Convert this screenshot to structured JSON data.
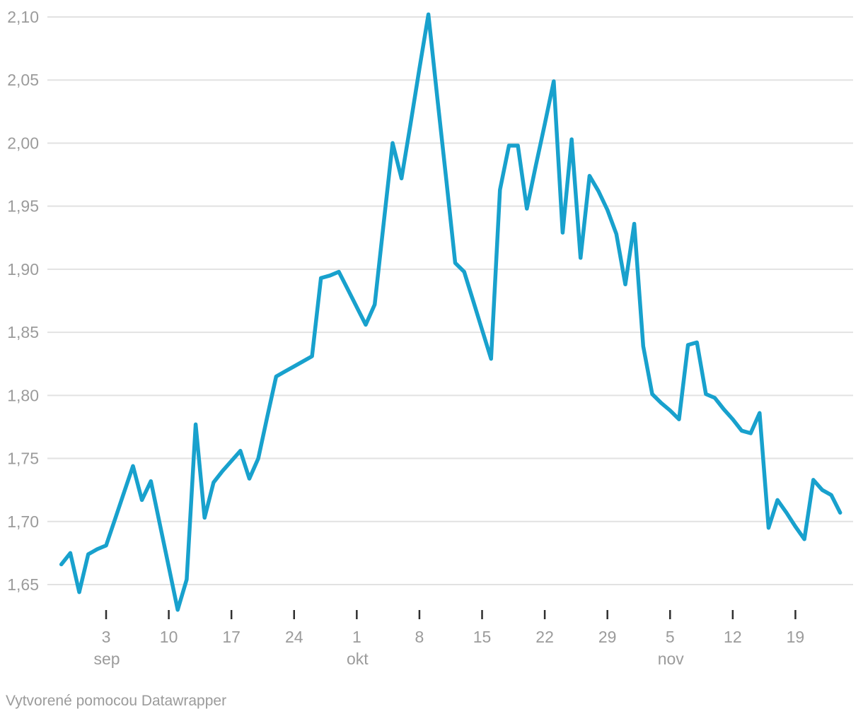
{
  "colors": {
    "line": "#18a1cd",
    "grid": "#e2e2e2",
    "axis_text": "#9b9b9b",
    "tick_mark": "#2f2f2f",
    "background": "#ffffff"
  },
  "footer": {
    "credit": "Vytvorené pomocou Datawrapper"
  },
  "chart_data": {
    "type": "line",
    "grid": true,
    "legend": "none",
    "y_axis": {
      "tick_labels": [
        "2,10",
        "2,05",
        "2,00",
        "1,95",
        "1,90",
        "1,85",
        "1,80",
        "1,75",
        "1,70",
        "1,65"
      ],
      "tick_values": [
        2.1,
        2.05,
        2.0,
        1.95,
        1.9,
        1.85,
        1.8,
        1.75,
        1.7,
        1.65
      ],
      "range": [
        1.65,
        2.1
      ],
      "decimal_separator": ","
    },
    "x_axis": {
      "ticks": [
        {
          "label": "3",
          "month": "sep",
          "index": 5
        },
        {
          "label": "10",
          "month": "",
          "index": 12
        },
        {
          "label": "17",
          "month": "",
          "index": 19
        },
        {
          "label": "24",
          "month": "",
          "index": 26
        },
        {
          "label": "1",
          "month": "okt",
          "index": 33
        },
        {
          "label": "8",
          "month": "",
          "index": 40
        },
        {
          "label": "15",
          "month": "",
          "index": 47
        },
        {
          "label": "22",
          "month": "",
          "index": 54
        },
        {
          "label": "29",
          "month": "",
          "index": 61
        },
        {
          "label": "5",
          "month": "nov",
          "index": 68
        },
        {
          "label": "12",
          "month": "",
          "index": 75
        },
        {
          "label": "19",
          "month": "",
          "index": 82
        }
      ]
    },
    "dates": [
      "29. aug",
      "30. aug",
      "31. aug",
      "1. sep",
      "2. sep",
      "3. sep",
      "4. sep",
      "5. sep",
      "6. sep",
      "7. sep",
      "8. sep",
      "9. sep",
      "10. sep",
      "11. sep",
      "12. sep",
      "13. sep",
      "14. sep",
      "15. sep",
      "16. sep",
      "17. sep",
      "18. sep",
      "19. sep",
      "20. sep",
      "21. sep",
      "22. sep",
      "23. sep",
      "24. sep",
      "25. sep",
      "26. sep",
      "27. sep",
      "28. sep",
      "29. sep",
      "30. sep",
      "1. okt",
      "2. okt",
      "3. okt",
      "4. okt",
      "5. okt",
      "6. okt",
      "7. okt",
      "8. okt",
      "9. okt",
      "10. okt",
      "11. okt",
      "12. okt",
      "13. okt",
      "14. okt",
      "15. okt",
      "16. okt",
      "17. okt",
      "18. okt",
      "19. okt",
      "20. okt",
      "21. okt",
      "22. okt",
      "23. okt",
      "24. okt",
      "25. okt",
      "26. okt",
      "27. okt",
      "28. okt",
      "29. okt",
      "30. okt",
      "31. okt",
      "1. nov",
      "2. nov",
      "3. nov",
      "4. nov",
      "5. nov",
      "6. nov",
      "7. nov",
      "8. nov",
      "9. nov",
      "10. nov",
      "11. nov",
      "12. nov",
      "13. nov",
      "14. nov",
      "15. nov",
      "16. nov",
      "17. nov",
      "18. nov",
      "19. nov",
      "20. nov",
      "21. nov",
      "22. nov",
      "23. nov",
      "24. nov"
    ],
    "values": [
      1.666,
      1.675,
      1.644,
      1.674,
      1.678,
      1.681,
      1.702,
      1.723,
      1.744,
      1.717,
      1.732,
      1.698,
      1.664,
      1.63,
      1.654,
      1.777,
      1.703,
      1.731,
      1.74,
      1.748,
      1.756,
      1.734,
      1.75,
      1.783,
      1.815,
      1.819,
      1.823,
      1.827,
      1.831,
      1.893,
      1.895,
      1.898,
      1.884,
      1.87,
      1.856,
      1.872,
      1.936,
      2.0,
      1.972,
      2.015,
      2.059,
      2.102,
      2.036,
      1.971,
      1.905,
      1.898,
      1.875,
      1.852,
      1.829,
      1.963,
      1.998,
      1.998,
      1.948,
      1.982,
      2.015,
      2.049,
      1.929,
      2.003,
      1.909,
      1.974,
      1.962,
      1.947,
      1.928,
      1.888,
      1.936,
      1.839,
      1.801,
      1.794,
      1.788,
      1.781,
      1.84,
      1.842,
      1.801,
      1.798,
      1.789,
      1.781,
      1.772,
      1.77,
      1.786,
      1.695,
      1.717,
      1.707,
      1.696,
      1.686,
      1.733,
      1.725,
      1.721,
      1.707
    ]
  }
}
